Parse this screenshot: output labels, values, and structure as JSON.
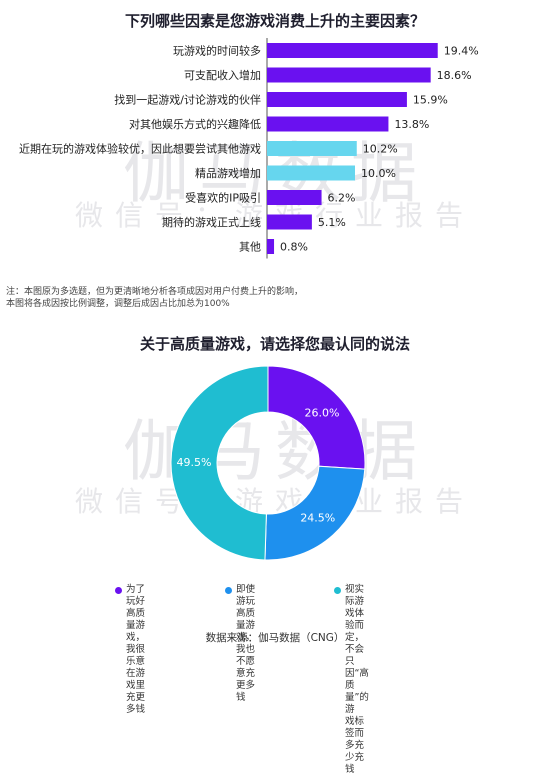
{
  "watermark": {
    "text_main": "伽马数据",
    "text_sub": "微信号：游戏行业报告"
  },
  "bar_chart": {
    "title": "下列哪些因素是您游戏消费上升的主要因素？",
    "note_line1": "注：本图原为多选题，但为更清晰地分析各项成因对用户付费上升的影响，",
    "note_line2": "本图将各成因按比例调整，调整后成因占比加总为100%"
  },
  "donut_chart": {
    "title": "关于高质量游戏，请选择您最认同的说法"
  },
  "legend": [
    {
      "text": "为了玩好高质量游\n戏，我很乐意在游\n戏里充更多钱",
      "color": "#6a11f0"
    },
    {
      "text": "即使游玩高质量游\n戏，我也不愿意充\n更多钱",
      "color": "#1e90ee"
    },
    {
      "text": "视实际游戏体验而定，\n不会只因“高质量”的游\n戏标签而多充少充钱",
      "color": "#1fbdd1"
    }
  ],
  "source": "数据来源：伽马数据（CNG）",
  "colors": {
    "purple": "#6a11f0",
    "blue": "#1e90ee",
    "cyan": "#1fbdd1",
    "light_cyan": "#66d6ee",
    "donut_hole": "#ffffff"
  },
  "chart_data": [
    {
      "type": "bar",
      "orientation": "horizontal",
      "title": "下列哪些因素是您游戏消费上升的主要因素？",
      "categories": [
        "玩游戏的时间较多",
        "可支配收入增加",
        "找到一起游戏/讨论游戏的伙伴",
        "对其他娱乐方式的兴趣降低",
        "近期在玩的游戏体验较优，因此想要尝试其他游戏",
        "精品游戏增加",
        "受喜欢的IP吸引",
        "期待的游戏正式上线",
        "其他"
      ],
      "values": [
        19.4,
        18.6,
        15.9,
        13.8,
        10.2,
        10.0,
        6.2,
        5.1,
        0.8
      ],
      "value_labels": [
        "19.4%",
        "18.6%",
        "15.9%",
        "13.8%",
        "10.2%",
        "10.0%",
        "6.2%",
        "5.1%",
        "0.8%"
      ],
      "bar_colors": [
        "#6a11f0",
        "#6a11f0",
        "#6a11f0",
        "#6a11f0",
        "#66d6ee",
        "#66d6ee",
        "#6a11f0",
        "#6a11f0",
        "#6a11f0"
      ],
      "xlabel": "",
      "ylabel": "",
      "xlim": [
        0,
        20
      ],
      "grid": false
    },
    {
      "type": "pie",
      "subtype": "donut",
      "title": "关于高质量游戏，请选择您最认同的说法",
      "categories": [
        "为了玩好高质量游戏，我很乐意在游戏里充更多钱",
        "即使游玩高质量游戏，我也不愿意充更多钱",
        "视实际游戏体验而定，不会只因“高质量”的游戏标签而多充少充钱"
      ],
      "values": [
        26.0,
        24.5,
        49.5
      ],
      "value_labels": [
        "26.0%",
        "24.5%",
        "49.5%"
      ],
      "colors": [
        "#6a11f0",
        "#1e90ee",
        "#1fbdd1"
      ],
      "legend_position": "bottom"
    }
  ]
}
